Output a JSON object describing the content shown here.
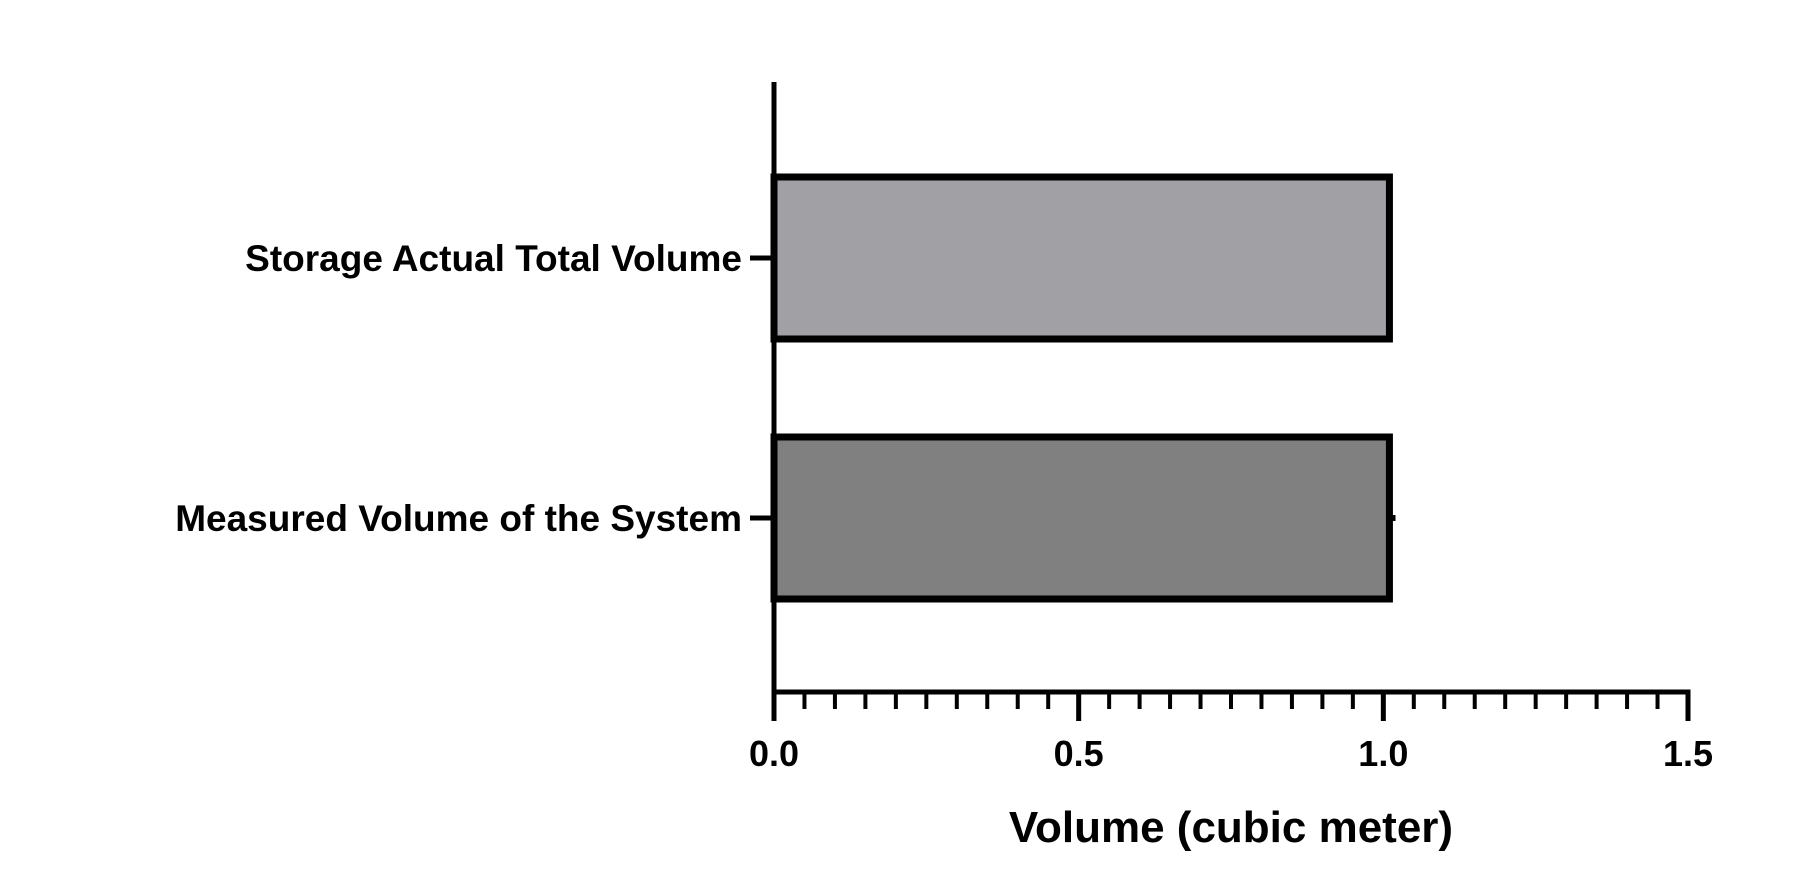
{
  "chart_data": {
    "type": "bar",
    "orientation": "horizontal",
    "categories": [
      "Storage Actual Total Volume",
      "Measured Volume of the System"
    ],
    "values": [
      1.01,
      1.01
    ],
    "error_bars": [
      null,
      0.01
    ],
    "colors": [
      "#a1a0a5",
      "#808080"
    ],
    "edge_color": "#000000",
    "title": "",
    "xlabel": "Volume (cubic meter)",
    "ylabel": "",
    "xlim": [
      0,
      1.5
    ],
    "xticks": [
      "0.0",
      "0.5",
      "1.0",
      "1.5"
    ],
    "minor_ticks_per_interval": 10,
    "grid": false,
    "legend": "none"
  }
}
